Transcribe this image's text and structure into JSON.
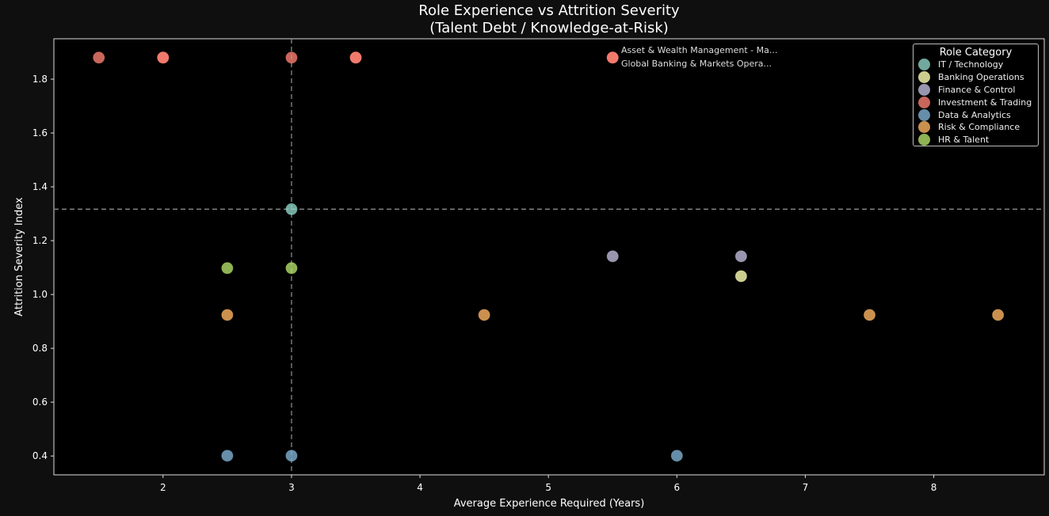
{
  "chart_data": {
    "type": "scatter",
    "title": "Role Experience vs Attrition Severity",
    "subtitle": "(Talent Debt / Knowledge-at-Risk)",
    "xlabel": "Average Experience Required (Years)",
    "ylabel": "Attrition Severity Index",
    "xlim": [
      1.15,
      8.86
    ],
    "ylim": [
      0.33,
      1.95
    ],
    "xticks": [
      2,
      3,
      4,
      5,
      6,
      7,
      8
    ],
    "yticks": [
      "0.4",
      "0.6",
      "0.8",
      "1.0",
      "1.2",
      "1.4",
      "1.6",
      "1.8"
    ],
    "grid": false,
    "reference_lines": {
      "x": 3.0,
      "y": 1.317
    },
    "legend": {
      "title": "Role Category",
      "placement": "top-right",
      "entries": [
        {
          "name": "IT / Technology",
          "color": "#8dd3c7"
        },
        {
          "name": "Banking Operations",
          "color": "#ffffb3"
        },
        {
          "name": "Finance & Control",
          "color": "#bebada"
        },
        {
          "name": "Investment & Trading",
          "color": "#fb8072"
        },
        {
          "name": "Data & Analytics",
          "color": "#80b1d3"
        },
        {
          "name": "Risk & Compliance",
          "color": "#fdb462"
        },
        {
          "name": "HR & Talent",
          "color": "#b3de69"
        }
      ]
    },
    "series": [
      {
        "name": "Investment & Trading",
        "points": [
          [
            1.5,
            1.88
          ],
          [
            2,
            1.88
          ],
          [
            2,
            1.88
          ],
          [
            3,
            1.88
          ],
          [
            3.5,
            1.88
          ],
          [
            3.5,
            1.88
          ],
          [
            5.5,
            1.88
          ],
          [
            5.5,
            1.88
          ]
        ]
      },
      {
        "name": "IT / Technology",
        "points": [
          [
            3,
            1.317
          ]
        ]
      },
      {
        "name": "HR & Talent",
        "points": [
          [
            2.5,
            1.098
          ],
          [
            3,
            1.098
          ]
        ]
      },
      {
        "name": "Risk & Compliance",
        "points": [
          [
            2.5,
            0.924
          ],
          [
            4.5,
            0.924
          ],
          [
            7.5,
            0.924
          ],
          [
            8.5,
            0.924
          ]
        ]
      },
      {
        "name": "Finance & Control",
        "points": [
          [
            5.5,
            1.142
          ],
          [
            6.5,
            1.142
          ]
        ]
      },
      {
        "name": "Banking Operations",
        "points": [
          [
            6.5,
            1.068
          ]
        ]
      },
      {
        "name": "Data & Analytics",
        "points": [
          [
            2.5,
            0.401
          ],
          [
            3,
            0.401
          ],
          [
            6,
            0.401
          ]
        ]
      }
    ],
    "annotations": [
      {
        "text": "Asset & Wealth Management - Ma...",
        "x": 5.5,
        "y": 1.88
      },
      {
        "text": "Global Banking & Markets Opera...",
        "x": 5.5,
        "y": 1.88
      }
    ]
  }
}
